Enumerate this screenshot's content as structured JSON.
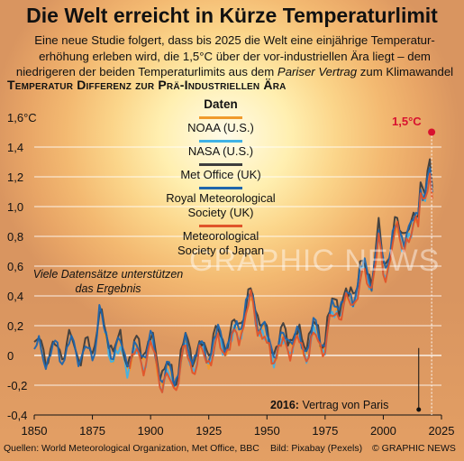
{
  "header": {
    "title": "Die Welt erreicht in Kürze Temperaturlimit",
    "subtitle_line1": "Eine neue Studie folgert, dass bis 2025 die Welt eine einjährige Temperatur-",
    "subtitle_line2": "erhöhung erleben wird, die 1,5°C über der vor-industriellen Ära liegt – dem",
    "subtitle_line3a": "niedrigeren der beiden Temperaturlimits aus dem ",
    "subtitle_line3b": "Pariser Vertrag",
    "subtitle_line3c": " zum Klimawandel"
  },
  "chart_data": {
    "type": "line",
    "title": "Temperatur Differenz zur Prä-Industriellen Ära",
    "xlim": [
      1850,
      2025
    ],
    "ylim": [
      -0.4,
      1.6
    ],
    "x_ticks": [
      "1850",
      "1875",
      "1900",
      "1925",
      "1950",
      "1975",
      "2000",
      "2025"
    ],
    "x_tick_values": [
      1850,
      1875,
      1900,
      1925,
      1950,
      1975,
      2000,
      2025
    ],
    "y_ticks": [
      "1,6°C",
      "1,4",
      "1,2",
      "1,0",
      "0,8",
      "0,6",
      "0,4",
      "0,2",
      "0",
      "-0,2",
      "-0,4"
    ],
    "y_tick_values": [
      1.6,
      1.4,
      1.2,
      1.0,
      0.8,
      0.6,
      0.4,
      0.2,
      0,
      -0.2,
      -0.4
    ],
    "legend_title": "Daten",
    "legend_placement": "top-center",
    "limit_value": 1.5,
    "limit_label": "1,5°C",
    "limit_year": 2020,
    "paris_year": 2016,
    "series": [
      {
        "name": "NOAA (U.S.)",
        "color": "#f09a2c",
        "start": 1880,
        "offset": -0.02,
        "noise": 0.04
      },
      {
        "name": "NASA (U.S.)",
        "color": "#3fb2e6",
        "start": 1880,
        "offset": -0.04,
        "noise": 0.05
      },
      {
        "name": "Met Office (UK)",
        "color": "#3d3d3d",
        "start": 1850,
        "offset": 0.02,
        "noise": 0.05
      },
      {
        "name": "Royal Meteorological Society (UK)",
        "color": "#1f65ac",
        "start": 1850,
        "offset": 0.0,
        "noise": 0.04
      },
      {
        "name": "Meteorological Society of Japan",
        "color": "#e0542a",
        "start": 1891,
        "offset": -0.05,
        "noise": 0.05
      }
    ],
    "base_anomaly": [
      [
        1850,
        0.05
      ],
      [
        1855,
        0.0
      ],
      [
        1860,
        0.02
      ],
      [
        1865,
        0.05
      ],
      [
        1870,
        0.02
      ],
      [
        1875,
        0.0
      ],
      [
        1878,
        0.3
      ],
      [
        1880,
        0.12
      ],
      [
        1885,
        0.05
      ],
      [
        1890,
        0.0
      ],
      [
        1895,
        0.02
      ],
      [
        1900,
        0.08
      ],
      [
        1905,
        -0.12
      ],
      [
        1910,
        -0.15
      ],
      [
        1915,
        0.05
      ],
      [
        1920,
        0.0
      ],
      [
        1925,
        0.05
      ],
      [
        1930,
        0.12
      ],
      [
        1935,
        0.1
      ],
      [
        1940,
        0.3
      ],
      [
        1944,
        0.38
      ],
      [
        1950,
        0.08
      ],
      [
        1955,
        0.06
      ],
      [
        1960,
        0.15
      ],
      [
        1965,
        0.07
      ],
      [
        1970,
        0.15
      ],
      [
        1975,
        0.12
      ],
      [
        1980,
        0.38
      ],
      [
        1985,
        0.35
      ],
      [
        1990,
        0.55
      ],
      [
        1995,
        0.55
      ],
      [
        1998,
        0.78
      ],
      [
        2000,
        0.6
      ],
      [
        2005,
        0.82
      ],
      [
        2010,
        0.85
      ],
      [
        2012,
        0.8
      ],
      [
        2015,
        1.0
      ],
      [
        2016,
        1.2
      ],
      [
        2018,
        1.05
      ],
      [
        2020,
        1.2
      ],
      [
        2021,
        1.1
      ]
    ]
  },
  "legend": {
    "items": [
      "NOAA (U.S.)",
      "NASA (U.S.)",
      "Met Office (UK)",
      "Royal Meteorological Society (UK)",
      "Meteorological Society of Japan"
    ]
  },
  "annotations": {
    "note": "Viele Datensätze unterstützen das Ergebnis",
    "paris_bold": "2016:",
    "paris_text": " Vertrag von Paris",
    "watermark": "GRAPHIC NEWS"
  },
  "footer": {
    "sources": "Quellen: World Meteorological Organization, Met Office, BBC",
    "image_credit": "Bild: Pixabay (Pexels)",
    "copyright": "© GRAPHIC NEWS"
  },
  "colors": {
    "limit": "#d8122f",
    "gridline": "#ffffff",
    "axis_text": "#111111"
  }
}
